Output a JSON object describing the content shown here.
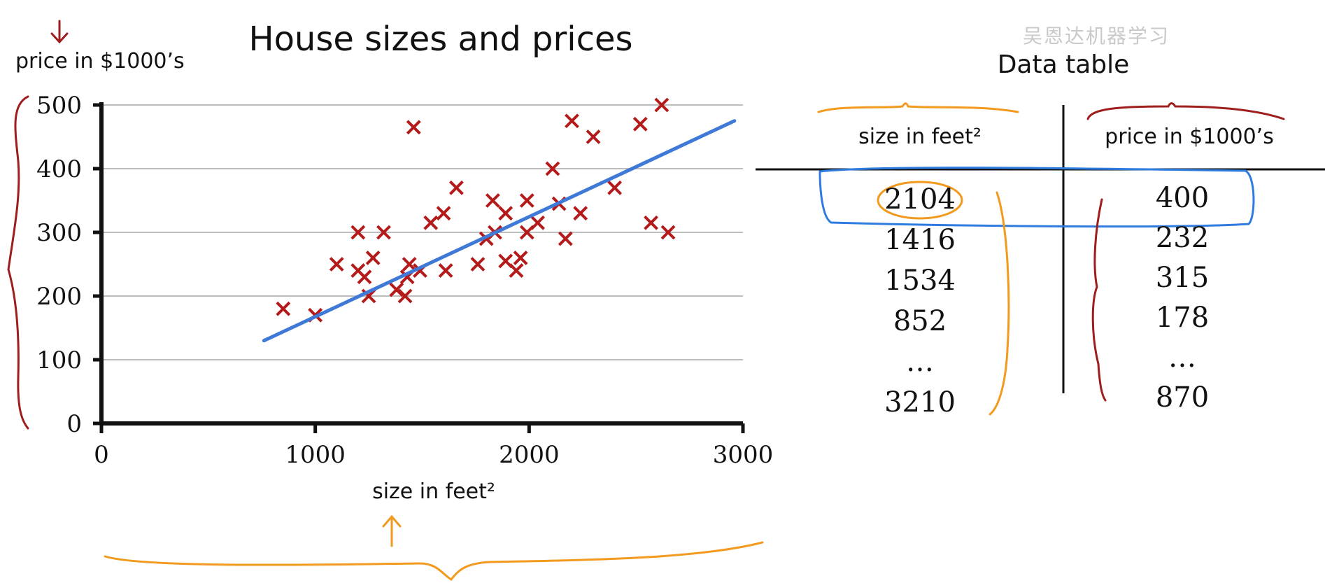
{
  "watermark_text": "吴恩达机器学习",
  "colors": {
    "point": "#b51a1a",
    "fit_line": "#3f79d8",
    "axis": "#111111",
    "grid": "#bdbdbd",
    "orange_annotation": "#f29a1e",
    "red_annotation": "#9e1e1e",
    "blue_highlight": "#2f7be0"
  },
  "chart_data": {
    "type": "scatter",
    "title": "House sizes and prices",
    "xlabel": "size in feet²",
    "ylabel": "price in $1000’s",
    "xlim": [
      0,
      3000
    ],
    "ylim": [
      0,
      500
    ],
    "xticks": [
      0,
      1000,
      2000,
      3000
    ],
    "yticks": [
      0,
      100,
      200,
      300,
      400,
      500
    ],
    "grid": true,
    "marker": "x",
    "points": [
      [
        850,
        180
      ],
      [
        1000,
        170
      ],
      [
        1100,
        250
      ],
      [
        1200,
        300
      ],
      [
        1200,
        240
      ],
      [
        1230,
        230
      ],
      [
        1250,
        200
      ],
      [
        1270,
        260
      ],
      [
        1320,
        300
      ],
      [
        1380,
        210
      ],
      [
        1420,
        200
      ],
      [
        1430,
        230
      ],
      [
        1440,
        250
      ],
      [
        1460,
        465
      ],
      [
        1490,
        240
      ],
      [
        1540,
        315
      ],
      [
        1600,
        330
      ],
      [
        1610,
        240
      ],
      [
        1660,
        370
      ],
      [
        1760,
        250
      ],
      [
        1800,
        290
      ],
      [
        1830,
        350
      ],
      [
        1840,
        300
      ],
      [
        1890,
        330
      ],
      [
        1890,
        255
      ],
      [
        1940,
        240
      ],
      [
        1960,
        260
      ],
      [
        1990,
        300
      ],
      [
        1990,
        350
      ],
      [
        2040,
        315
      ],
      [
        2110,
        400
      ],
      [
        2140,
        345
      ],
      [
        2170,
        290
      ],
      [
        2200,
        475
      ],
      [
        2240,
        330
      ],
      [
        2300,
        450
      ],
      [
        2400,
        370
      ],
      [
        2520,
        470
      ],
      [
        2570,
        315
      ],
      [
        2620,
        500
      ],
      [
        2650,
        300
      ]
    ],
    "fit_line": [
      [
        760,
        130
      ],
      [
        2960,
        475
      ]
    ]
  },
  "table": {
    "title": "Data table",
    "headers": [
      "size in feet²",
      "price in $1000’s"
    ],
    "rows": [
      [
        "2104",
        "400"
      ],
      [
        "1416",
        "232"
      ],
      [
        "1534",
        "315"
      ],
      [
        "852",
        "178"
      ],
      [
        "…",
        "…"
      ],
      [
        "3210",
        "870"
      ]
    ]
  }
}
